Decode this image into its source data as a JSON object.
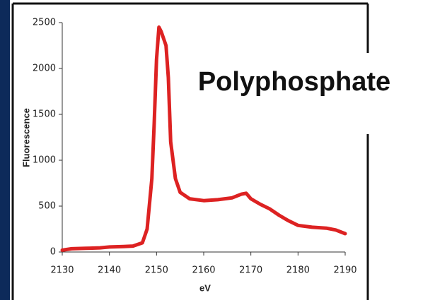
{
  "chart_data": {
    "type": "line",
    "annotation": "Polyphosphate",
    "x_label": "eV",
    "y_label": "Fluorescence",
    "x": [
      2130,
      2132,
      2135,
      2138,
      2140,
      2143,
      2145,
      2147,
      2148,
      2149,
      2149.5,
      2150,
      2150.5,
      2151,
      2152,
      2152.5,
      2153,
      2154,
      2155,
      2157,
      2160,
      2163,
      2166,
      2168,
      2169,
      2170,
      2172,
      2174,
      2176,
      2178,
      2180,
      2183,
      2186,
      2188,
      2190
    ],
    "values": [
      20,
      35,
      40,
      45,
      55,
      60,
      65,
      100,
      250,
      800,
      1400,
      2100,
      2450,
      2400,
      2250,
      1900,
      1200,
      800,
      650,
      580,
      560,
      570,
      590,
      630,
      640,
      580,
      520,
      470,
      400,
      340,
      290,
      270,
      260,
      240,
      200
    ],
    "color": "#dd2222",
    "xlim": [
      2130,
      2190
    ],
    "xticks": [
      2130,
      2140,
      2150,
      2160,
      2170,
      2180,
      2190
    ],
    "ylim": [
      0,
      2500
    ],
    "yticks": [
      0,
      500,
      1000,
      1500,
      2000,
      2500
    ],
    "grid": false
  }
}
